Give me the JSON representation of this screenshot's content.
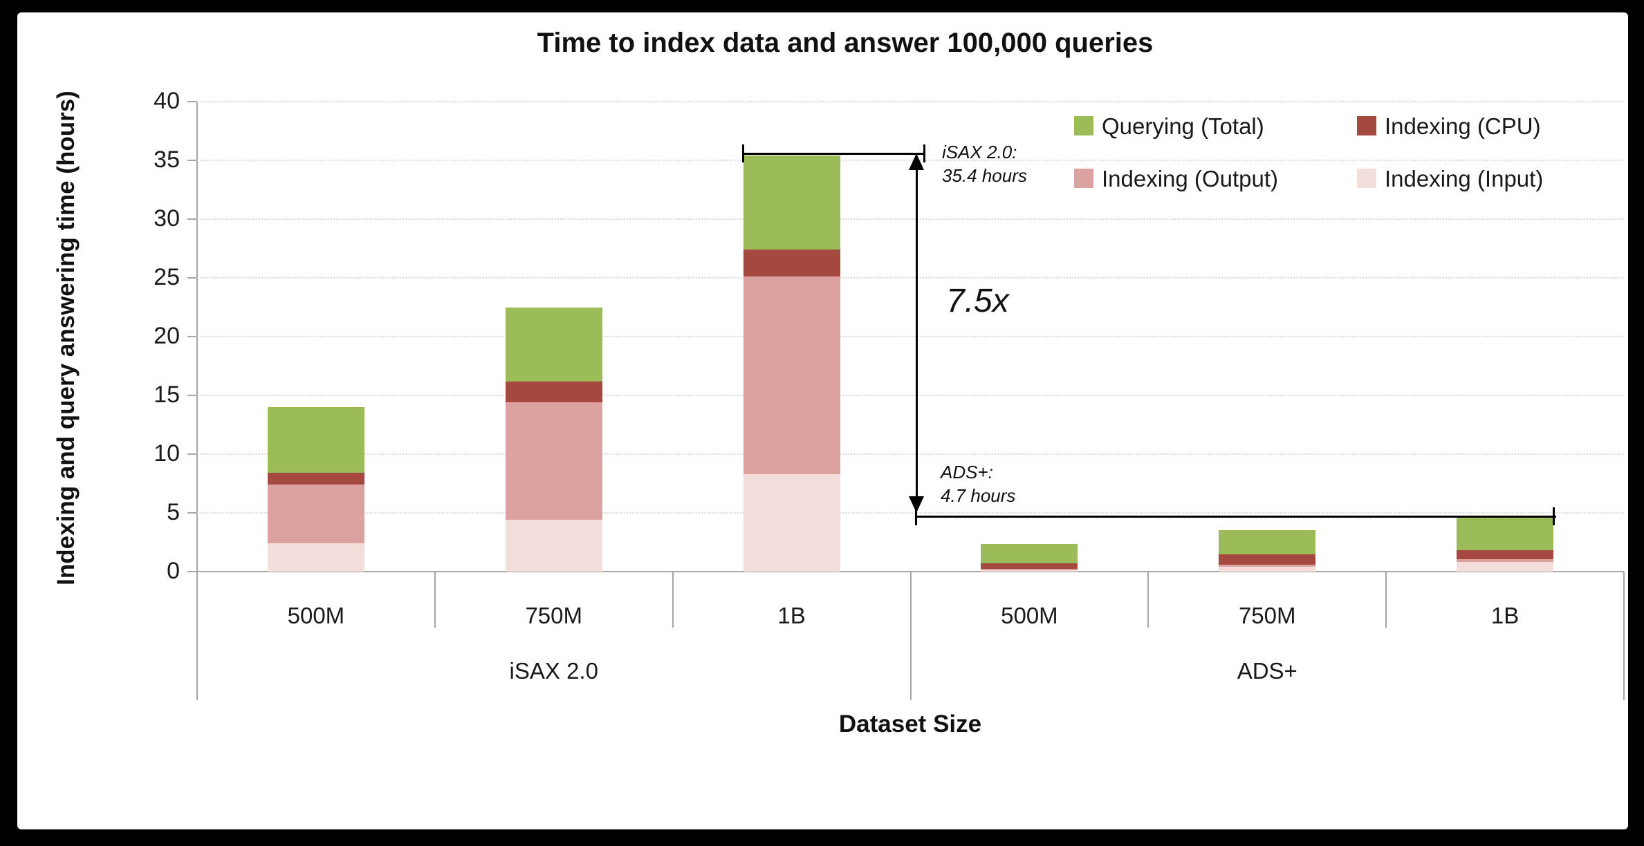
{
  "title": "Time to index data and answer 100,000 queries",
  "y_axis": {
    "title": "Indexing and query answering time (hours)",
    "ticks": [
      0,
      5,
      10,
      15,
      20,
      25,
      30,
      35,
      40
    ],
    "max": 40
  },
  "x_axis": {
    "title": "Dataset Size",
    "groups": [
      {
        "label": "iSAX 2.0",
        "categories": [
          "500M",
          "750M",
          "1B"
        ]
      },
      {
        "label": "ADS+",
        "categories": [
          "500M",
          "750M",
          "1B"
        ]
      }
    ]
  },
  "legend": {
    "items": [
      {
        "label": "Querying (Total)",
        "color": "#9CBB59"
      },
      {
        "label": "Indexing (CPU)",
        "color": "#A5483F"
      },
      {
        "label": "Indexing (Output)",
        "color": "#DCA2A0"
      },
      {
        "label": "Indexing (Input)",
        "color": "#F3DEDC"
      }
    ]
  },
  "annotations": {
    "isax_line1": "iSAX 2.0:",
    "isax_line2": "35.4 hours",
    "speedup": "7.5x",
    "ads_line1": "ADS+:",
    "ads_line2": "4.7 hours"
  },
  "chart_data": {
    "type": "bar",
    "stacked": true,
    "title": "Time to index data and answer 100,000 queries",
    "xlabel": "Dataset Size",
    "ylabel": "Indexing and query answering time (hours)",
    "ylim": [
      0,
      40
    ],
    "y_tick_step": 5,
    "grid": "horizontal-dotted",
    "legend_position": "top-right",
    "categories": [
      "500M",
      "750M",
      "1B",
      "500M",
      "750M",
      "1B"
    ],
    "category_groups": [
      "iSAX 2.0",
      "iSAX 2.0",
      "iSAX 2.0",
      "ADS+",
      "ADS+",
      "ADS+"
    ],
    "series": [
      {
        "name": "Indexing (Input)",
        "color": "#F3DEDC",
        "values": [
          2.4,
          4.4,
          8.3,
          0.1,
          0.4,
          0.8
        ]
      },
      {
        "name": "Indexing (Output)",
        "color": "#DCA2A0",
        "values": [
          5.0,
          10.0,
          16.8,
          0.15,
          0.2,
          0.25
        ]
      },
      {
        "name": "Indexing (CPU)",
        "color": "#A5483F",
        "values": [
          1.0,
          1.8,
          2.3,
          0.45,
          0.85,
          0.75
        ]
      },
      {
        "name": "Querying (Total)",
        "color": "#9CBB59",
        "values": [
          5.6,
          6.3,
          8.0,
          1.65,
          2.1,
          2.9
        ]
      }
    ],
    "totals": [
      14.0,
      22.5,
      35.4,
      2.3,
      3.55,
      4.7
    ],
    "annotations": [
      {
        "text": "iSAX 2.0: 35.4 hours",
        "at_hours": 35.4,
        "applies_to": "iSAX 2.0 1B total"
      },
      {
        "text": "ADS+: 4.7 hours",
        "at_hours": 4.7,
        "applies_to": "ADS+ 1B total"
      },
      {
        "text": "7.5x",
        "meaning": "ratio between iSAX 2.0 (35.4 h) and ADS+ (4.7 h) totals"
      }
    ]
  }
}
